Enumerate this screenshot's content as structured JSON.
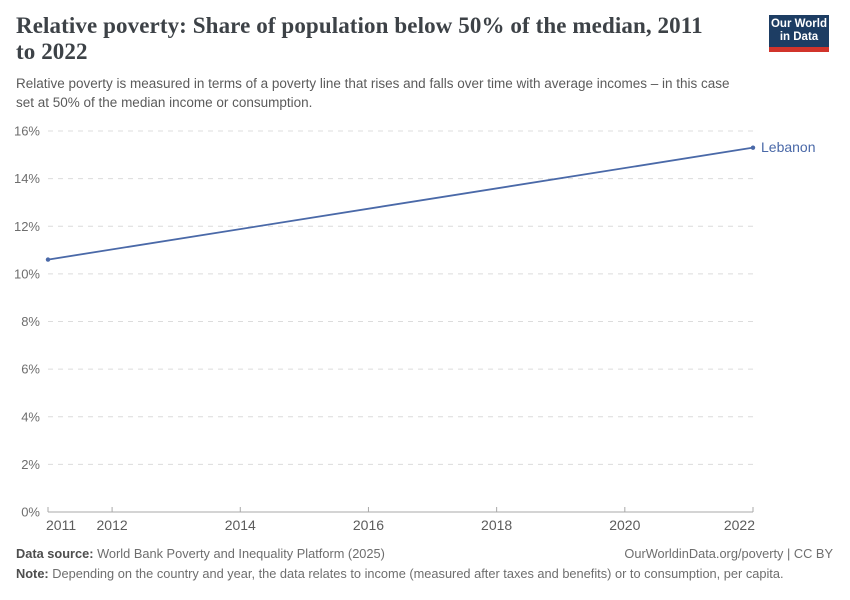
{
  "header": {
    "title_lines": [
      "Relative poverty: Share of population below 50% of the median, 2011",
      "to 2022"
    ],
    "subtitle_lines": [
      "Relative poverty is measured in terms of a poverty line that rises and falls over time with average incomes – in this case",
      "set at 50% of the median income or consumption."
    ]
  },
  "logo": {
    "line1": "Our World",
    "line2": "in Data",
    "bg_color": "#1d3d63",
    "accent_color": "#d1342b"
  },
  "chart_data": {
    "type": "line",
    "xlim": [
      2011,
      2022
    ],
    "ylim": [
      0,
      16
    ],
    "grid": true,
    "x_ticks": [
      {
        "v": 2011,
        "label": "2011"
      },
      {
        "v": 2012,
        "label": "2012"
      },
      {
        "v": 2014,
        "label": "2014"
      },
      {
        "v": 2016,
        "label": "2016"
      },
      {
        "v": 2018,
        "label": "2018"
      },
      {
        "v": 2020,
        "label": "2020"
      },
      {
        "v": 2022,
        "label": "2022"
      }
    ],
    "y_ticks": [
      {
        "v": 0,
        "label": "0%"
      },
      {
        "v": 2,
        "label": "2%"
      },
      {
        "v": 4,
        "label": "4%"
      },
      {
        "v": 6,
        "label": "6%"
      },
      {
        "v": 8,
        "label": "8%"
      },
      {
        "v": 10,
        "label": "10%"
      },
      {
        "v": 12,
        "label": "12%"
      },
      {
        "v": 14,
        "label": "14%"
      },
      {
        "v": 16,
        "label": "16%"
      }
    ],
    "series": [
      {
        "name": "Lebanon",
        "color": "#4a69a8",
        "points": [
          {
            "year": 2011,
            "value": 10.6
          },
          {
            "year": 2022,
            "value": 15.3
          }
        ]
      }
    ],
    "legend_position": "end-of-line-label",
    "grid_color": "#dcdcdc",
    "axis_color": "#a8a8a8",
    "y_label_color": "#6e6e6e",
    "x_label_color": "#5c5c5c"
  },
  "footer": {
    "data_source_label": "Data source:",
    "data_source_text": " World Bank Poverty and Inequality Platform (2025)",
    "link_text": "OurWorldinData.org/poverty | CC BY",
    "note_label": "Note:",
    "note_text": " Depending on the country and year, the data relates to income (measured after taxes and benefits) or to consumption, per capita."
  }
}
